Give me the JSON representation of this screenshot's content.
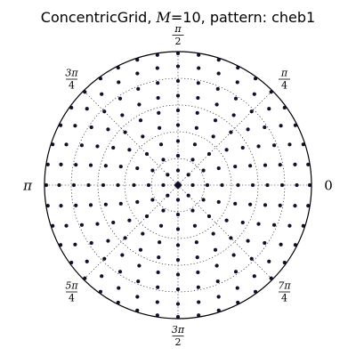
{
  "chart_data": {
    "type": "scatter",
    "coordinate_system": "polar",
    "title": {
      "name": "ConcentricGrid",
      "separator": ", ",
      "m_symbol": "M",
      "m_equals": "=",
      "m_value": "10",
      "pattern_label": ", pattern: cheb1"
    },
    "r_lim": [
      0,
      1
    ],
    "r_grid": [
      0.2,
      0.4,
      0.6,
      0.8
    ],
    "grid": true,
    "angular_ticks": [
      {
        "angle_deg": 0,
        "top": "0",
        "bottom": ""
      },
      {
        "angle_deg": 45,
        "top": "π",
        "bottom": "4"
      },
      {
        "angle_deg": 90,
        "top": "π",
        "bottom": "2"
      },
      {
        "angle_deg": 135,
        "top": "3π",
        "bottom": "4"
      },
      {
        "angle_deg": 180,
        "top": "π",
        "bottom": ""
      },
      {
        "angle_deg": 225,
        "top": "5π",
        "bottom": "4"
      },
      {
        "angle_deg": 270,
        "top": "3π",
        "bottom": "2"
      },
      {
        "angle_deg": 315,
        "top": "7π",
        "bottom": "4"
      }
    ],
    "point_color": "#10103a",
    "rings": [
      {
        "r": 0.0,
        "count": 1
      },
      {
        "r": 0.013,
        "count": 4
      },
      {
        "r": 0.11,
        "count": 8
      },
      {
        "r": 0.22,
        "count": 12
      },
      {
        "r": 0.33,
        "count": 16
      },
      {
        "r": 0.45,
        "count": 20
      },
      {
        "r": 0.56,
        "count": 24
      },
      {
        "r": 0.67,
        "count": 28
      },
      {
        "r": 0.78,
        "count": 32
      },
      {
        "r": 0.89,
        "count": 36
      },
      {
        "r": 0.987,
        "count": 40
      }
    ]
  }
}
